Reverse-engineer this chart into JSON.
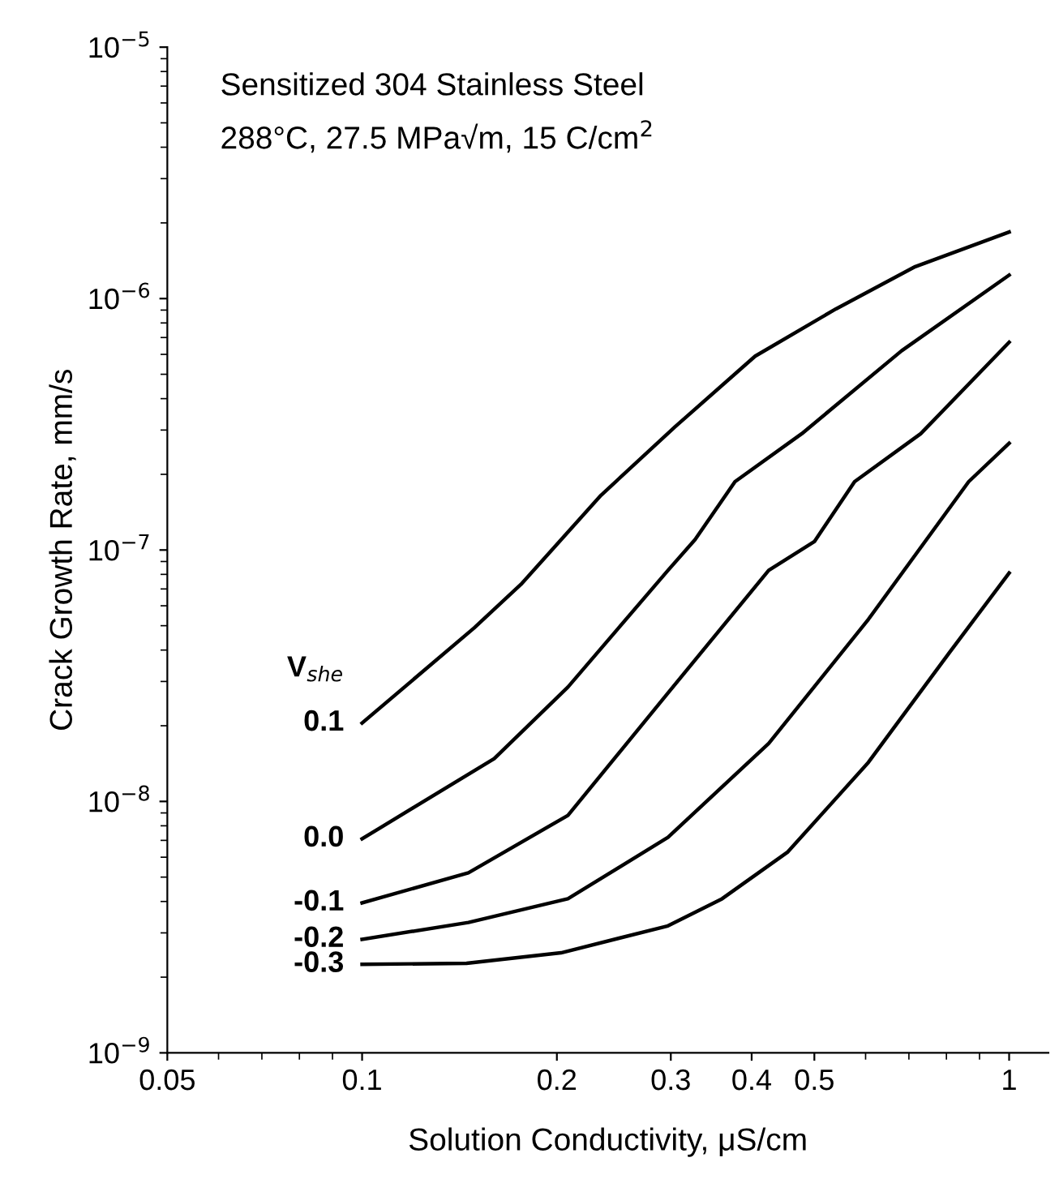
{
  "chart_data": {
    "type": "line",
    "title": "Sensitized 304 Stainless Steel",
    "subtitle": "288°C, 27.5 MPa√m, 15 C/cm$^{2}$",
    "xlabel": "Solution Conductivity, μS/cm",
    "ylabel": "Crack Growth Rate, mm/s",
    "legend_title": "V$_{she}$",
    "log": "xy",
    "xlim": [
      0.05,
      1.15
    ],
    "ylim": [
      1e-09,
      1e-05
    ],
    "xticks": [
      0.05,
      0.1,
      0.2,
      0.3,
      0.4,
      0.5,
      1
    ],
    "yticks": [
      {
        "value": 1e-09,
        "label": "10$^{−9}$"
      },
      {
        "value": 1e-08,
        "label": "10$^{−8}$"
      },
      {
        "value": 1e-07,
        "label": "10$^{−7}$"
      },
      {
        "value": 1e-06,
        "label": "10$^{−6}$"
      },
      {
        "value": 1e-05,
        "label": "10$^{−5}$"
      }
    ],
    "grid": false,
    "legend": "left",
    "marker": "none",
    "line_style": "solid",
    "series": [
      {
        "name": "0.1",
        "color": "#000000",
        "x": [
          0.1,
          0.149,
          0.176,
          0.234,
          0.305,
          0.405,
          0.54,
          0.716,
          1
        ],
        "values": [
          2.05e-08,
          4.9e-08,
          7.3e-08,
          1.65e-07,
          3.1e-07,
          5.9e-07,
          9.1e-07,
          1.34e-06,
          1.84e-06
        ]
      },
      {
        "name": "0.0",
        "color": "#000000",
        "x": [
          0.1,
          0.16,
          0.208,
          0.297,
          0.327,
          0.377,
          0.478,
          0.682,
          1
        ],
        "values": [
          7.1e-09,
          1.48e-08,
          2.85e-08,
          8.3e-08,
          1.1e-07,
          1.87e-07,
          2.9e-07,
          6.2e-07,
          1.24e-06
        ]
      },
      {
        "name": "-0.1",
        "color": "#000000",
        "x": [
          0.1,
          0.146,
          0.208,
          0.297,
          0.425,
          0.5,
          0.577,
          0.73,
          1
        ],
        "values": [
          3.95e-09,
          5.2e-09,
          8.8e-09,
          2.7e-08,
          8.3e-08,
          1.08e-07,
          1.87e-07,
          2.9e-07,
          6.7e-07
        ]
      },
      {
        "name": "-0.2",
        "color": "#000000",
        "x": [
          0.1,
          0.146,
          0.208,
          0.297,
          0.425,
          0.606,
          0.866,
          1
        ],
        "values": [
          2.83e-09,
          3.3e-09,
          4.1e-09,
          7.2e-09,
          1.7e-08,
          5.3e-08,
          1.87e-07,
          2.66e-07
        ]
      },
      {
        "name": "-0.3",
        "color": "#000000",
        "x": [
          0.1,
          0.145,
          0.203,
          0.297,
          0.36,
          0.455,
          0.606,
          0.808,
          1
        ],
        "values": [
          2.25e-09,
          2.27e-09,
          2.5e-09,
          3.2e-09,
          4.1e-09,
          6.3e-09,
          1.43e-08,
          3.9e-08,
          8.1e-08
        ]
      }
    ]
  }
}
